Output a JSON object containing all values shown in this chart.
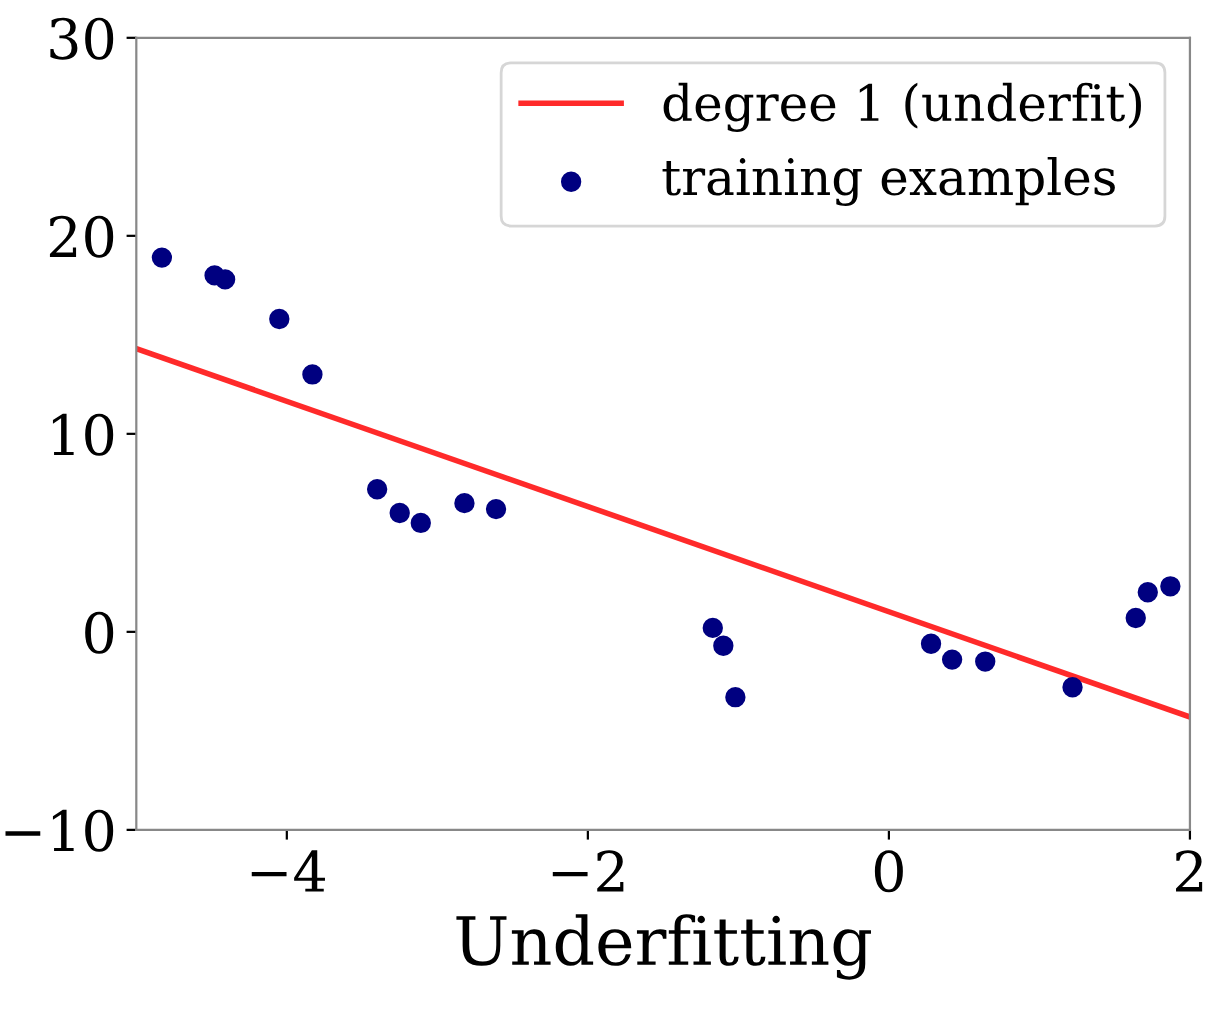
{
  "chart_data": {
    "type": "scatter",
    "xlabel": "Underfitting",
    "xlim": [
      -5,
      2
    ],
    "ylim": [
      -10,
      30
    ],
    "xticks": [
      -4,
      -2,
      0,
      2
    ],
    "yticks": [
      -10,
      0,
      10,
      20,
      30
    ],
    "grid": false,
    "legend": "top right",
    "series": [
      {
        "name": "degree 1 (underfit)",
        "type": "line",
        "color": "#ff2a2a",
        "x": [
          -5,
          2
        ],
        "values": [
          14.3,
          -4.3
        ],
        "marker": "none",
        "line_style": "solid"
      },
      {
        "name": "training examples",
        "color": "#000080",
        "marker": "circle",
        "x": [
          -4.83,
          -4.48,
          -4.41,
          -4.05,
          -3.83,
          -3.4,
          -3.25,
          -3.11,
          -2.82,
          -2.61,
          -1.17,
          -1.1,
          -1.02,
          0.28,
          0.42,
          0.64,
          1.22,
          1.64,
          1.72,
          1.87
        ],
        "values": [
          18.9,
          18.0,
          17.8,
          15.8,
          13.0,
          7.2,
          6.0,
          5.5,
          6.5,
          6.2,
          0.2,
          -0.7,
          -3.3,
          -0.6,
          -1.4,
          -1.5,
          -2.8,
          0.7,
          2.0,
          2.3
        ]
      }
    ]
  }
}
